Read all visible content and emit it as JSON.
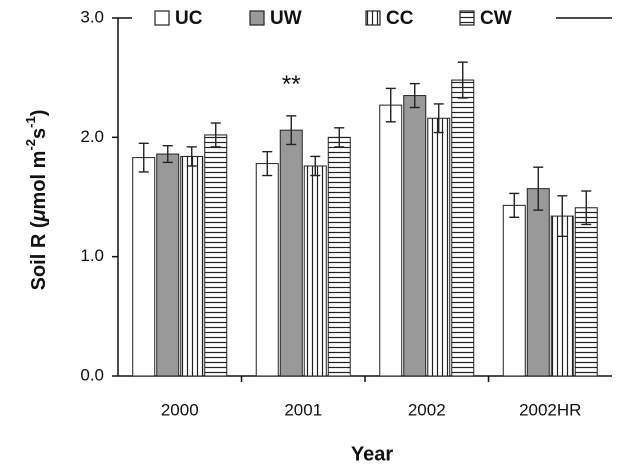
{
  "chart_data": {
    "type": "bar",
    "categories": [
      "2000",
      "2001",
      "2002",
      "2002HR"
    ],
    "series": [
      {
        "name": "UC",
        "color": "#ffffff",
        "pattern": "none",
        "values": [
          1.83,
          1.78,
          2.27,
          1.43
        ],
        "errors": [
          0.12,
          0.1,
          0.14,
          0.1
        ]
      },
      {
        "name": "UW",
        "color": "#999999",
        "pattern": "none",
        "values": [
          1.86,
          2.06,
          2.35,
          1.57
        ],
        "errors": [
          0.07,
          0.12,
          0.1,
          0.18
        ]
      },
      {
        "name": "CC",
        "color": "#ffffff",
        "pattern": "vertical",
        "values": [
          1.84,
          1.76,
          2.16,
          1.34
        ],
        "errors": [
          0.08,
          0.08,
          0.12,
          0.17
        ]
      },
      {
        "name": "CW",
        "color": "#ffffff",
        "pattern": "horizontal",
        "values": [
          2.02,
          2.0,
          2.48,
          1.41
        ],
        "errors": [
          0.1,
          0.08,
          0.15,
          0.14
        ]
      }
    ],
    "ylim": [
      0,
      3
    ],
    "yticks": [
      {
        "value": 0,
        "label": "0.0"
      },
      {
        "value": 1,
        "label": "1.0"
      },
      {
        "value": 2,
        "label": "2.0"
      },
      {
        "value": 3,
        "label": "3.0"
      }
    ],
    "x_label": "Year",
    "y_label": {
      "before": "Soil R (",
      "mu": "μ",
      "unit1": "mol m",
      "exp1": "-2",
      "unit2": "s",
      "exp2": "-1",
      "after": ")"
    },
    "annotation": {
      "text": "**",
      "category": 1,
      "series": 1
    }
  }
}
